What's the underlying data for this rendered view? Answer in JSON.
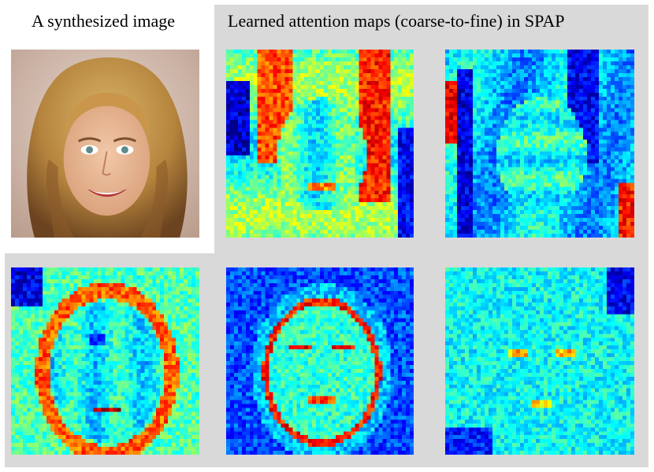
{
  "captions": {
    "synthesized": "A synthesized image",
    "attention": "Learned attention maps (coarse-to-fine) in SPAP"
  },
  "colors": {
    "panel_bg": "#d9d9d9",
    "jet_blue": "#1a3cff",
    "jet_cyan": "#30d0ff",
    "jet_green": "#7dff7a",
    "jet_yellow": "#ffe600",
    "jet_red": "#e8210e"
  },
  "images": [
    {
      "name": "synthesized-face-image",
      "kind": "photo"
    },
    {
      "name": "attention-map-1",
      "kind": "heatmap",
      "level": "coarse"
    },
    {
      "name": "attention-map-2",
      "kind": "heatmap"
    },
    {
      "name": "attention-map-3",
      "kind": "heatmap"
    },
    {
      "name": "attention-map-4",
      "kind": "heatmap"
    },
    {
      "name": "attention-map-5",
      "kind": "heatmap",
      "level": "fine"
    }
  ]
}
